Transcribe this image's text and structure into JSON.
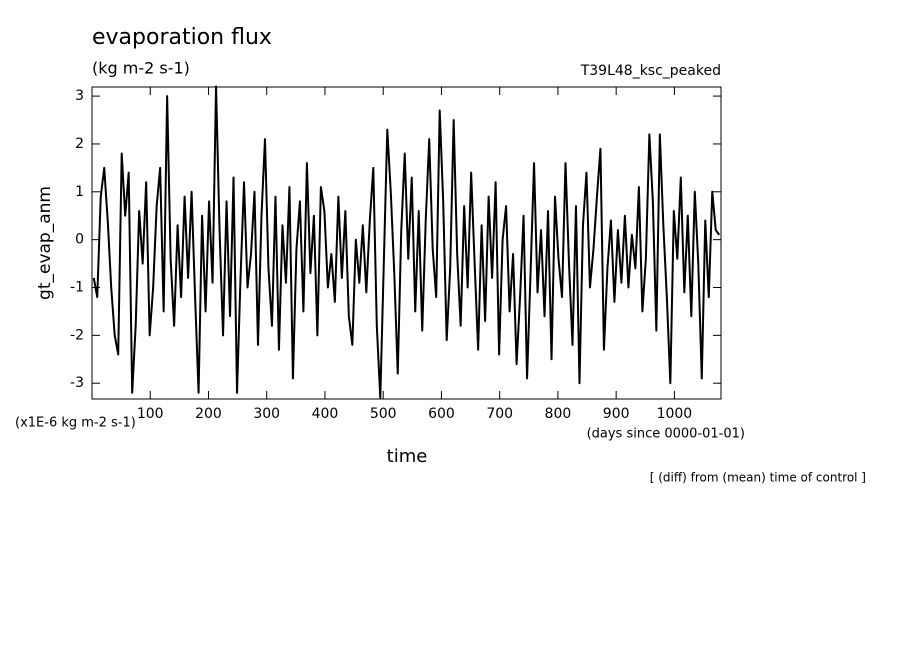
{
  "chart_data": {
    "type": "line",
    "title": "evaporation flux",
    "subtitle": "(kg m-2 s-1)",
    "run_label": "T39L48_ksc_peaked",
    "y_label": "gt_evap_anm",
    "y_unit_label": "(x1E-6 kg m-2 s-1)",
    "x_unit_label": "(days since 0000-01-01)",
    "x_label": "time",
    "note": "[ (diff) from (mean) time of control ]",
    "color": "#000000",
    "xlim": [
      0,
      1080
    ],
    "xticks": [
      100,
      200,
      300,
      400,
      500,
      600,
      700,
      800,
      900,
      1000
    ],
    "ylim": [
      -3.33,
      3.19
    ],
    "yticks": [
      -3,
      -2,
      -1,
      0,
      1,
      2,
      3
    ],
    "x": [
      3,
      9,
      15,
      21,
      27,
      33,
      39,
      45,
      51,
      57,
      63,
      69,
      75,
      81,
      87,
      93,
      99,
      105,
      111,
      117,
      123,
      129,
      135,
      141,
      147,
      153,
      159,
      165,
      171,
      177,
      183,
      189,
      195,
      201,
      207,
      213,
      219,
      225,
      231,
      237,
      243,
      249,
      255,
      261,
      267,
      273,
      279,
      285,
      291,
      297,
      303,
      309,
      315,
      321,
      327,
      333,
      339,
      345,
      351,
      357,
      363,
      369,
      375,
      381,
      387,
      393,
      399,
      405,
      411,
      417,
      423,
      429,
      435,
      441,
      447,
      453,
      459,
      465,
      471,
      477,
      483,
      489,
      495,
      501,
      507,
      513,
      519,
      525,
      531,
      537,
      543,
      549,
      555,
      561,
      567,
      573,
      579,
      585,
      591,
      597,
      603,
      609,
      615,
      621,
      627,
      633,
      639,
      645,
      651,
      657,
      663,
      669,
      675,
      681,
      687,
      693,
      699,
      705,
      711,
      717,
      723,
      729,
      735,
      741,
      747,
      753,
      759,
      765,
      771,
      777,
      783,
      789,
      795,
      801,
      807,
      813,
      819,
      825,
      831,
      837,
      843,
      849,
      855,
      861,
      867,
      873,
      879,
      885,
      891,
      897,
      903,
      909,
      915,
      921,
      927,
      933,
      939,
      945,
      951,
      957,
      963,
      969,
      975,
      981,
      987,
      993,
      999,
      1005,
      1011,
      1017,
      1023,
      1029,
      1035,
      1041,
      1047,
      1053,
      1059,
      1065,
      1071,
      1077
    ],
    "values": [
      -0.8,
      -1.2,
      0.9,
      1.5,
      0.4,
      -1.0,
      -2.0,
      -2.4,
      1.8,
      0.5,
      1.4,
      -3.2,
      -1.8,
      0.6,
      -0.5,
      1.2,
      -2.0,
      -1.0,
      0.7,
      1.5,
      -1.5,
      3.0,
      -0.4,
      -1.8,
      0.3,
      -1.2,
      0.9,
      -0.8,
      1.0,
      -1.2,
      -3.2,
      0.5,
      -1.5,
      0.8,
      -0.9,
      3.2,
      0.2,
      -2.0,
      0.8,
      -1.6,
      1.3,
      -3.2,
      -0.8,
      1.2,
      -1.0,
      -0.3,
      1.0,
      -2.2,
      0.5,
      2.1,
      -0.6,
      -1.8,
      0.9,
      -2.3,
      0.3,
      -0.9,
      1.1,
      -2.9,
      -0.2,
      0.8,
      -1.5,
      1.6,
      -0.7,
      0.5,
      -2.0,
      1.1,
      0.6,
      -1.0,
      -0.3,
      -1.3,
      0.9,
      -0.8,
      0.6,
      -1.6,
      -2.2,
      0.0,
      -0.9,
      0.3,
      -1.1,
      0.4,
      1.5,
      -1.8,
      -3.3,
      -0.5,
      2.3,
      1.0,
      -0.7,
      -2.8,
      0.2,
      1.8,
      -0.4,
      1.3,
      -1.5,
      0.6,
      -1.9,
      0.4,
      2.1,
      -0.2,
      -1.2,
      2.7,
      0.8,
      -2.1,
      -0.6,
      2.5,
      -0.3,
      -1.8,
      0.7,
      -1.0,
      1.4,
      -0.5,
      -2.3,
      0.3,
      -1.7,
      0.9,
      -0.8,
      1.2,
      -2.4,
      0.0,
      0.7,
      -1.5,
      -0.3,
      -2.6,
      -1.2,
      0.5,
      -2.9,
      -0.7,
      1.6,
      -1.1,
      0.2,
      -1.6,
      0.6,
      -2.5,
      0.9,
      -0.4,
      -1.2,
      1.6,
      -0.5,
      -2.2,
      0.7,
      -3.0,
      0.3,
      1.4,
      -1.0,
      -0.2,
      0.9,
      1.9,
      -2.3,
      -0.6,
      0.4,
      -1.3,
      0.2,
      -0.9,
      0.5,
      -1.0,
      0.1,
      -0.6,
      1.1,
      -1.5,
      -0.4,
      2.2,
      0.8,
      -1.9,
      2.2,
      0.3,
      -1.2,
      -3.0,
      0.6,
      -0.4,
      1.3,
      -1.1,
      0.5,
      -1.6,
      1.0,
      -0.5,
      -2.9,
      0.4,
      -1.2,
      1.0,
      0.2,
      0.1
    ]
  }
}
